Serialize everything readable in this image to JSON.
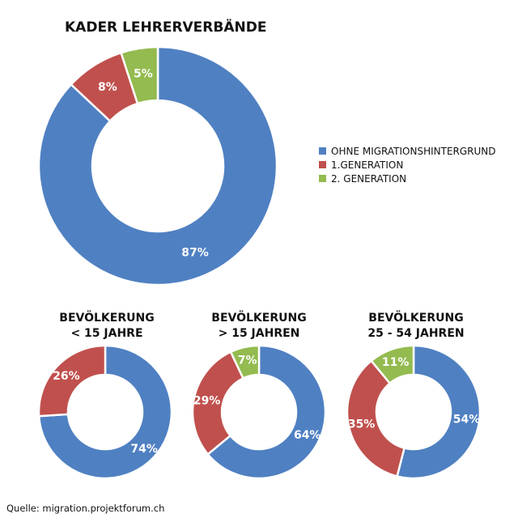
{
  "source": "Quelle: migration.projektforum.ch",
  "colors": {
    "blue": "#4f80c2",
    "red": "#c0504d",
    "green": "#93bb4f"
  },
  "legend": [
    {
      "label": "OHNE MIGRATIONSHINTERGRUND",
      "color": "#4f80c2"
    },
    {
      "label": "1.GENERATION",
      "color": "#c0504d"
    },
    {
      "label": "2. GENERATION",
      "color": "#93bb4f"
    }
  ],
  "chart_data": [
    {
      "type": "pie",
      "title": "KADER LEHRERVERBÄNDE",
      "subtitle_lines": [],
      "legend_position": "right",
      "slices": [
        {
          "label": "OHNE MIGRATIONSHINTERGRUND",
          "value": 87,
          "text": "87%",
          "color": "#4f80c2"
        },
        {
          "label": "1.GENERATION",
          "value": 8,
          "text": "8%",
          "color": "#c0504d"
        },
        {
          "label": "2. GENERATION",
          "value": 5,
          "text": "5%",
          "color": "#93bb4f"
        }
      ]
    },
    {
      "type": "pie",
      "title": "",
      "subtitle_lines": [
        "BEVÖLKERUNG",
        "< 15 JAHRE"
      ],
      "slices": [
        {
          "label": "OHNE MIGRATIONSHINTERGRUND",
          "value": 74,
          "text": "74%",
          "color": "#4f80c2"
        },
        {
          "label": "1.GENERATION",
          "value": 26,
          "text": "26%",
          "color": "#c0504d"
        }
      ]
    },
    {
      "type": "pie",
      "title": "",
      "subtitle_lines": [
        "BEVÖLKERUNG",
        "> 15 JAHREN"
      ],
      "slices": [
        {
          "label": "OHNE MIGRATIONSHINTERGRUND",
          "value": 64,
          "text": "64%",
          "color": "#4f80c2"
        },
        {
          "label": "1.GENERATION",
          "value": 29,
          "text": "29%",
          "color": "#c0504d"
        },
        {
          "label": "2. GENERATION",
          "value": 7,
          "text": "7%",
          "color": "#93bb4f"
        }
      ]
    },
    {
      "type": "pie",
      "title": "",
      "subtitle_lines": [
        "BEVÖLKERUNG",
        "25 - 54 JAHREN"
      ],
      "slices": [
        {
          "label": "OHNE MIGRATIONSHINTERGRUND",
          "value": 54,
          "text": "54%",
          "color": "#4f80c2"
        },
        {
          "label": "1.GENERATION",
          "value": 35,
          "text": "35%",
          "color": "#c0504d"
        },
        {
          "label": "2. GENERATION",
          "value": 11,
          "text": "11%",
          "color": "#93bb4f"
        }
      ]
    }
  ]
}
